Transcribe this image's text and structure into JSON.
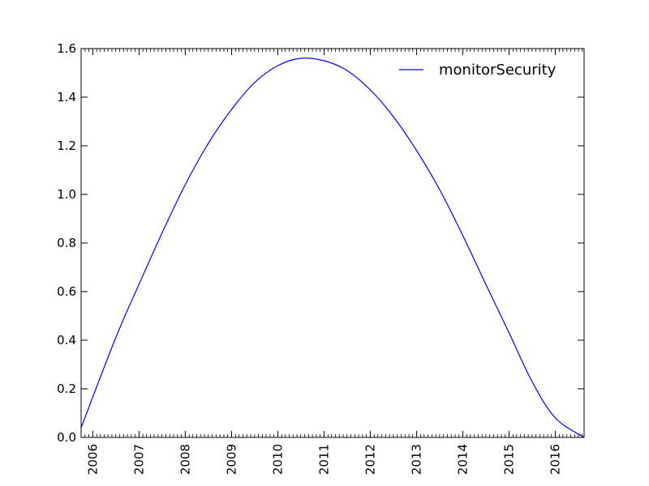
{
  "chart_data": {
    "type": "line",
    "title": "",
    "xlabel": "",
    "ylabel": "",
    "xlim": [
      "2005-10-01",
      "2016-08-15"
    ],
    "ylim": [
      0.0,
      1.6
    ],
    "x_ticks": [
      "2006",
      "2007",
      "2008",
      "2009",
      "2010",
      "2011",
      "2012",
      "2013",
      "2014",
      "2015",
      "2016"
    ],
    "y_ticks": [
      "0.0",
      "0.2",
      "0.4",
      "0.6",
      "0.8",
      "1.0",
      "1.2",
      "1.4",
      "1.6"
    ],
    "grid": false,
    "legend_position": "upper right",
    "series": [
      {
        "name": "monitorSecurity",
        "color": "#0000ff",
        "x": [
          "2005-10-01",
          "2006-07-01",
          "2007-01-01",
          "2007-07-01",
          "2008-01-01",
          "2008-07-01",
          "2009-01-01",
          "2009-07-01",
          "2010-01-01",
          "2010-07-01",
          "2011-01-01",
          "2011-07-01",
          "2012-01-01",
          "2012-07-01",
          "2013-01-01",
          "2013-07-01",
          "2014-01-01",
          "2014-07-01",
          "2015-01-01",
          "2015-07-01",
          "2016-01-01",
          "2016-08-15"
        ],
        "values": [
          0.04,
          0.41,
          0.63,
          0.84,
          1.04,
          1.21,
          1.35,
          1.46,
          1.53,
          1.56,
          1.55,
          1.51,
          1.43,
          1.32,
          1.18,
          1.02,
          0.83,
          0.63,
          0.43,
          0.23,
          0.08,
          0.0
        ]
      }
    ]
  }
}
